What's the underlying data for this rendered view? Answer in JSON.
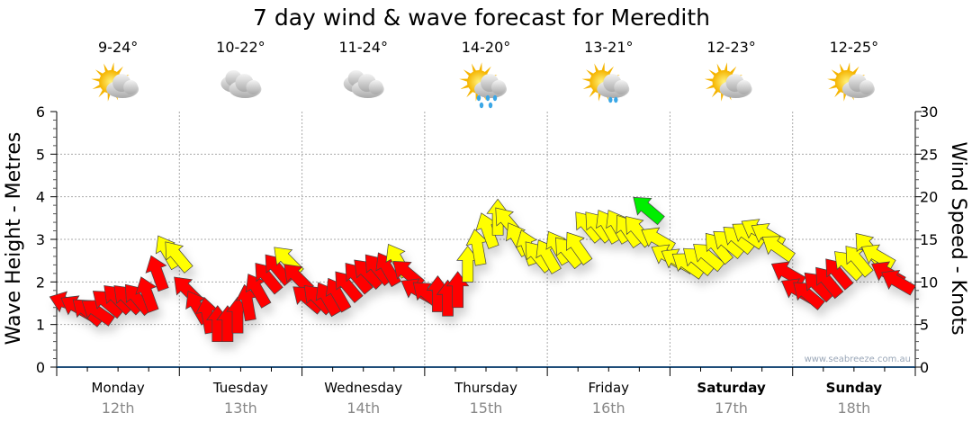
{
  "chart_data": {
    "type": "line",
    "title": "7 day wind & wave forecast for Meredith",
    "ylabel_left": "Wave Height - Metres",
    "ylabel_right": "Wind Speed - Knots",
    "ylim_left": [
      0,
      6
    ],
    "ylim_right": [
      0,
      30
    ],
    "yticks_left": [
      "0",
      "1",
      "2",
      "3",
      "4",
      "5",
      "6"
    ],
    "yticks_right": [
      "0",
      "5",
      "10",
      "15",
      "20",
      "25",
      "30"
    ],
    "grid": true,
    "watermark": "www.seabreeze.com.au",
    "days": [
      {
        "day": "Monday",
        "date": "12th",
        "temps": "9-24°",
        "icon": "partly-cloudy-icon",
        "bold": false
      },
      {
        "day": "Tuesday",
        "date": "13th",
        "temps": "10-22°",
        "icon": "cloudy-icon",
        "bold": false
      },
      {
        "day": "Wednesday",
        "date": "14th",
        "temps": "11-24°",
        "icon": "cloudy-icon",
        "bold": false
      },
      {
        "day": "Thursday",
        "date": "15th",
        "temps": "14-20°",
        "icon": "showers-icon",
        "bold": false
      },
      {
        "day": "Friday",
        "date": "16th",
        "temps": "13-21°",
        "icon": "light-showers-icon",
        "bold": false
      },
      {
        "day": "Saturday",
        "date": "17th",
        "temps": "12-23°",
        "icon": "partly-cloudy-icon",
        "bold": true
      },
      {
        "day": "Sunday",
        "date": "18th",
        "temps": "12-25°",
        "icon": "partly-cloudy-icon",
        "bold": true
      }
    ],
    "colors": {
      "light": "#ff0000",
      "moderate": "#ffff00",
      "strong": "#00ee00",
      "axis": "#1f4e79"
    },
    "series": [
      {
        "name": "Wind speed (knots)",
        "speed": [
          7.5,
          7,
          6.5,
          6.5,
          7.5,
          8,
          8,
          8,
          8.5,
          11,
          13.5,
          13,
          9,
          7,
          6,
          5,
          5,
          6,
          7.5,
          9,
          10.5,
          11.5,
          12.5,
          10.5,
          8,
          8,
          8,
          8.5,
          9.5,
          10.5,
          11,
          11.5,
          11.5,
          12.5,
          11,
          9,
          8.5,
          8.5,
          8,
          9,
          12,
          14,
          16,
          17.5,
          17,
          15,
          14,
          13,
          13,
          14,
          13.5,
          14,
          16.5,
          16.5,
          16.5,
          16.5,
          16,
          16,
          18.5,
          15,
          13,
          12.5,
          12,
          12.5,
          13,
          14,
          14.5,
          15,
          15.5,
          16,
          15.5,
          14,
          11,
          9,
          8.5,
          9.5,
          10,
          11,
          12,
          12.5,
          14,
          13,
          11,
          10
        ],
        "direction_deg": [
          290,
          300,
          310,
          305,
          310,
          315,
          315,
          320,
          340,
          340,
          330,
          320,
          315,
          330,
          350,
          0,
          0,
          0,
          350,
          330,
          320,
          320,
          315,
          315,
          310,
          315,
          330,
          330,
          320,
          320,
          315,
          320,
          330,
          330,
          310,
          300,
          310,
          0,
          0,
          0,
          0,
          350,
          340,
          0,
          320,
          330,
          340,
          320,
          330,
          330,
          320,
          325,
          320,
          320,
          330,
          330,
          325,
          320,
          310,
          300,
          300,
          300,
          305,
          310,
          310,
          320,
          310,
          310,
          305,
          300,
          300,
          305,
          300,
          300,
          310,
          315,
          320,
          320,
          315,
          320,
          320,
          300,
          300,
          300
        ]
      }
    ]
  }
}
